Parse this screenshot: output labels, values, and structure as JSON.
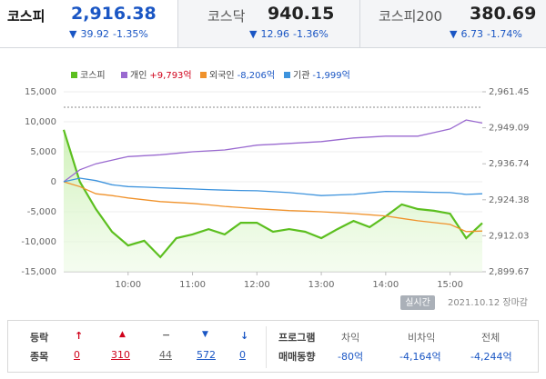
{
  "tabs": [
    {
      "name": "코스피",
      "value": "2,916.38",
      "change": "39.92",
      "rate": "-1.35%"
    },
    {
      "name": "코스닥",
      "value": "940.15",
      "change": "12.96",
      "rate": "-1.36%"
    },
    {
      "name": "코스피200",
      "value": "380.69",
      "change": "6.73",
      "rate": "-1.74%"
    }
  ],
  "chart_data": {
    "type": "line",
    "x": [
      540,
      555,
      570,
      585,
      600,
      615,
      630,
      645,
      660,
      675,
      690,
      705,
      720,
      735,
      750,
      765,
      780,
      795,
      810,
      825,
      840,
      855,
      870,
      885,
      900,
      915,
      930
    ],
    "xlim": [
      540,
      930
    ],
    "xticks": [
      {
        "value": 600,
        "label": "10:00"
      },
      {
        "value": 660,
        "label": "11:00"
      },
      {
        "value": 720,
        "label": "12:00"
      },
      {
        "value": 780,
        "label": "13:00"
      },
      {
        "value": 840,
        "label": "14:00"
      },
      {
        "value": 900,
        "label": "15:00"
      }
    ],
    "ylim": [
      -15000,
      15000
    ],
    "yticks": [
      {
        "value": 15000,
        "label": "15,000"
      },
      {
        "value": 10000,
        "label": "10,000"
      },
      {
        "value": 5000,
        "label": "5,000"
      },
      0,
      {
        "value": -5000,
        "label": "-5,000"
      },
      {
        "value": -10000,
        "label": "-10,000"
      },
      {
        "value": -15000,
        "label": "-15,000"
      }
    ],
    "y2lim": [
      2899.67,
      2961.45
    ],
    "y2ticks": [
      {
        "value": 2961.45,
        "label": "2,961.45"
      },
      {
        "value": 2949.09,
        "label": "2,949.09"
      },
      {
        "value": 2936.74,
        "label": "2,936.74"
      },
      {
        "value": 2924.38,
        "label": "2,924.38"
      },
      {
        "value": 2912.03,
        "label": "2,912.03"
      },
      {
        "value": 2899.67,
        "label": "2,899.67"
      }
    ],
    "grid": true,
    "series": [
      {
        "name": "코스피",
        "color": "#5cbf1f",
        "axis": "y2",
        "area": true,
        "values": [
          2948.4,
          2930.6,
          2921.2,
          2913.4,
          2908.7,
          2910.3,
          2904.7,
          2911.2,
          2912.5,
          2914.3,
          2912.5,
          2916.5,
          2916.5,
          2913.4,
          2914.3,
          2913.4,
          2911.2,
          2914.3,
          2917.1,
          2915.0,
          2918.7,
          2922.8,
          2921.2,
          2920.6,
          2919.6,
          2911.2,
          2916.38
        ]
      },
      {
        "name": "개인",
        "label": "+9,793억",
        "color": "#9a6ad0",
        "values": [
          0,
          2000,
          3000,
          3600,
          4200,
          4350,
          4500,
          4750,
          5000,
          5150,
          5300,
          5700,
          6100,
          6250,
          6400,
          6550,
          6700,
          7000,
          7300,
          7450,
          7600,
          7600,
          7600,
          8200,
          8800,
          10300,
          9793
        ]
      },
      {
        "name": "외국인",
        "label": "-8,206억",
        "color": "#f0922b",
        "values": [
          0,
          -800,
          -2000,
          -2300,
          -2700,
          -3000,
          -3300,
          -3450,
          -3600,
          -3850,
          -4100,
          -4300,
          -4500,
          -4650,
          -4800,
          -4900,
          -5000,
          -5150,
          -5300,
          -5500,
          -5700,
          -6100,
          -6500,
          -6800,
          -7100,
          -8300,
          -8206
        ]
      },
      {
        "name": "기관",
        "label": "-1,999억",
        "color": "#3d93dd",
        "values": [
          0,
          600,
          200,
          -500,
          -800,
          -900,
          -1000,
          -1100,
          -1200,
          -1300,
          -1400,
          -1450,
          -1500,
          -1650,
          -1800,
          -2050,
          -2300,
          -2200,
          -2100,
          -1850,
          -1600,
          -1650,
          -1700,
          -1750,
          -1800,
          -2100,
          -1999
        ]
      }
    ],
    "realtime_button": "실시간",
    "timestamp": "2021.10.12 장마감"
  },
  "footer": {
    "breadth": {
      "label": [
        "등락",
        "종목"
      ],
      "counts": [
        "0",
        "310",
        "44",
        "572",
        "0"
      ]
    },
    "program": {
      "label": [
        "프로그램",
        "매매동향"
      ],
      "columns": [
        {
          "name": "차익",
          "value": "-80억"
        },
        {
          "name": "비차익",
          "value": "-4,164억"
        },
        {
          "name": "전체",
          "value": "-4,244억"
        }
      ]
    }
  }
}
